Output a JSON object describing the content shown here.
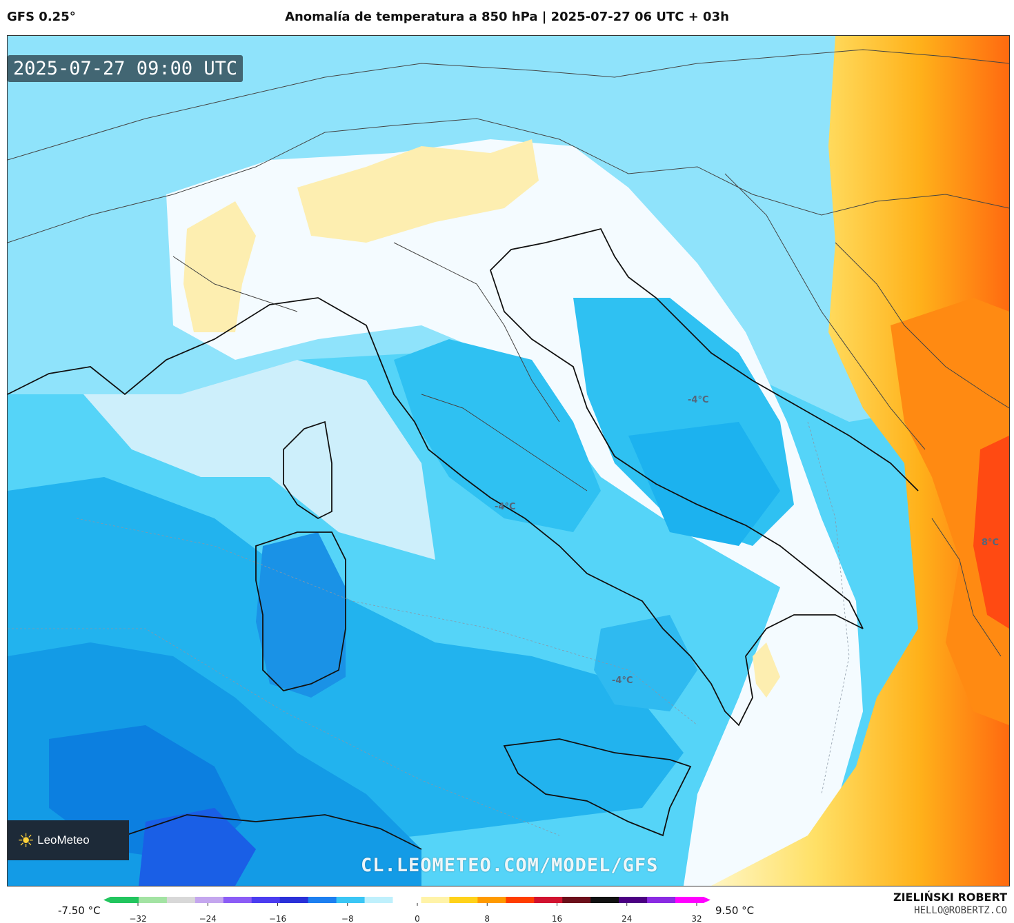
{
  "header": {
    "model": "GFS 0.25°",
    "title": "Anomalía de temperatura a 850 hPa | 2025-07-27 06 UTC + 03h"
  },
  "map": {
    "valid_time": "2025-07-27 09:00 UTC",
    "contour_labels": [
      "-4°C",
      "-4°C",
      "-4°C",
      "8°C"
    ],
    "watermark": "CL.LEOMETEO.COM/MODEL/GFS",
    "logo": {
      "icon": "sun-icon",
      "text": "LeoMeteo"
    }
  },
  "colorbar": {
    "min_label": "-7.50 °C",
    "max_label": "9.50 °C",
    "ticks": [
      "−32",
      "−24",
      "−16",
      "−8",
      "0",
      "8",
      "16",
      "24",
      "32"
    ],
    "colors": [
      "#22c55e",
      "#a3e3a3",
      "#d8d8d8",
      "#c4a6ee",
      "#8b5cf6",
      "#4b3cf0",
      "#2a30d8",
      "#1d7ff0",
      "#3ac6f5",
      "#bff0fc",
      "#ffffff",
      "#fff3a8",
      "#ffd21a",
      "#ff9a00",
      "#ff3d00",
      "#d1122f",
      "#6b0f1a",
      "#111111",
      "#4b0082",
      "#8a2be2",
      "#ff00ff"
    ]
  },
  "credits": {
    "author": "ZIELIŃSKI ROBERT",
    "contact": "HELLO@ROBERTZ.CO"
  }
}
